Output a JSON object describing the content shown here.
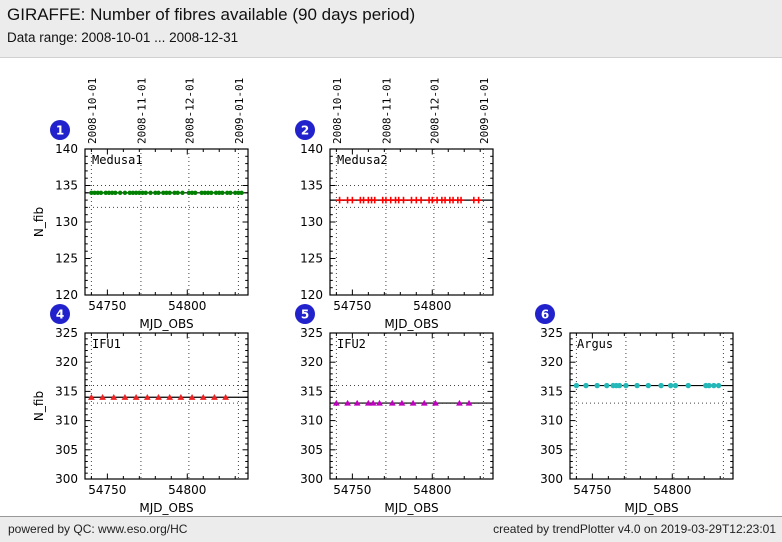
{
  "header": {
    "title": "GIRAFFE: Number of fibres available (90 days period)",
    "subtitle": "Data range: 2008-10-01 ... 2008-12-31"
  },
  "footer": {
    "left": "powered by QC: www.eso.org/HC",
    "right": "created by trendPlotter v4.0 on 2019-03-29T12:23:01"
  },
  "colors": {
    "band_bg": "#ececec",
    "badge_bg": "#2222cc",
    "badge_text": "#ffffff",
    "axis": "#000000",
    "grid": "#444444",
    "medusa1": "#008000",
    "medusa2": "#ff0000",
    "ifu1": "#ee2222",
    "ifu2": "#bf00bf",
    "argus": "#25b8b8"
  },
  "axes_shared": {
    "xlabel": "MJD_OBS",
    "xlim": [
      54736,
      54838
    ],
    "x_major_ticks": [
      54750,
      54800
    ],
    "x_minor_start": 54740,
    "x_minor_step": 10,
    "x_minor_end": 54830,
    "date_gridlines": [
      {
        "mjd": 54740,
        "label": "2008-10-01"
      },
      {
        "mjd": 54771,
        "label": "2008-11-01"
      },
      {
        "mjd": 54801,
        "label": "2008-12-01"
      },
      {
        "mjd": 54832,
        "label": "2009-01-01"
      }
    ]
  },
  "chart_data": [
    {
      "type": "scatter",
      "badge": "1",
      "panel": "Medusa1",
      "marker": "circle",
      "color_key": "medusa1",
      "ylabel": "N_fib",
      "ylim": [
        120,
        140
      ],
      "yticks": [
        120,
        125,
        130,
        135,
        140
      ],
      "y_value": 134,
      "mean_line": 134,
      "upper_limit": 135,
      "lower_limit": 132,
      "x": [
        54740,
        54742,
        54744,
        54746,
        54749,
        54751,
        54753,
        54755,
        54758,
        54761,
        54764,
        54766,
        54768,
        54770,
        54772,
        54774,
        54777,
        54780,
        54782,
        54785,
        54787,
        54789,
        54792,
        54794,
        54797,
        54801,
        54803,
        54805,
        54809,
        54811,
        54813,
        54815,
        54818,
        54820,
        54822,
        54825,
        54827,
        54830,
        54832,
        54834
      ]
    },
    {
      "type": "scatter",
      "badge": "2",
      "panel": "Medusa2",
      "marker": "plus",
      "color_key": "medusa2",
      "ylim": [
        120,
        140
      ],
      "yticks": [
        120,
        125,
        130,
        135,
        140
      ],
      "y_value": 133,
      "mean_line": 133,
      "upper_limit": 135,
      "lower_limit": 132,
      "x": [
        54742,
        54747,
        54750,
        54755,
        54757,
        54760,
        54762,
        54764,
        54769,
        54771,
        54774,
        54777,
        54779,
        54782,
        54787,
        54790,
        54793,
        54798,
        54800,
        54803,
        54806,
        54808,
        54811,
        54813,
        54816,
        54818,
        54826,
        54829
      ]
    },
    {
      "type": "scatter",
      "badge": "4",
      "panel": "IFU1",
      "marker": "triangle",
      "color_key": "ifu1",
      "ylabel": "N_fib",
      "ylim": [
        300,
        325
      ],
      "yticks": [
        300,
        305,
        310,
        315,
        320,
        325
      ],
      "y_value": 314,
      "mean_line": 314,
      "upper_limit": 316,
      "lower_limit": 313,
      "x": [
        54740,
        54747,
        54754,
        54761,
        54768,
        54775,
        54782,
        54789,
        54796,
        54803,
        54810,
        54817,
        54824
      ]
    },
    {
      "type": "scatter",
      "badge": "5",
      "panel": "IFU2",
      "marker": "triangle",
      "color_key": "ifu2",
      "ylim": [
        300,
        325
      ],
      "yticks": [
        300,
        305,
        310,
        315,
        320,
        325
      ],
      "y_value": 313,
      "mean_line": 313,
      "upper_limit": 316,
      "lower_limit": 313,
      "x": [
        54740,
        54747,
        54753,
        54760,
        54763,
        54767,
        54775,
        54781,
        54788,
        54795,
        54802,
        54817,
        54823
      ]
    },
    {
      "type": "scatter",
      "badge": "6",
      "panel": "Argus",
      "marker": "circle",
      "color_key": "argus",
      "ylim": [
        300,
        325
      ],
      "yticks": [
        300,
        305,
        310,
        315,
        320,
        325
      ],
      "y_value": 316,
      "mean_line": 316,
      "upper_limit": 316,
      "lower_limit": 313,
      "x": [
        54740,
        54746,
        54753,
        54759,
        54763,
        54765,
        54767,
        54771,
        54778,
        54785,
        54793,
        54799,
        54802,
        54810,
        54821,
        54823,
        54826,
        54829
      ]
    }
  ]
}
